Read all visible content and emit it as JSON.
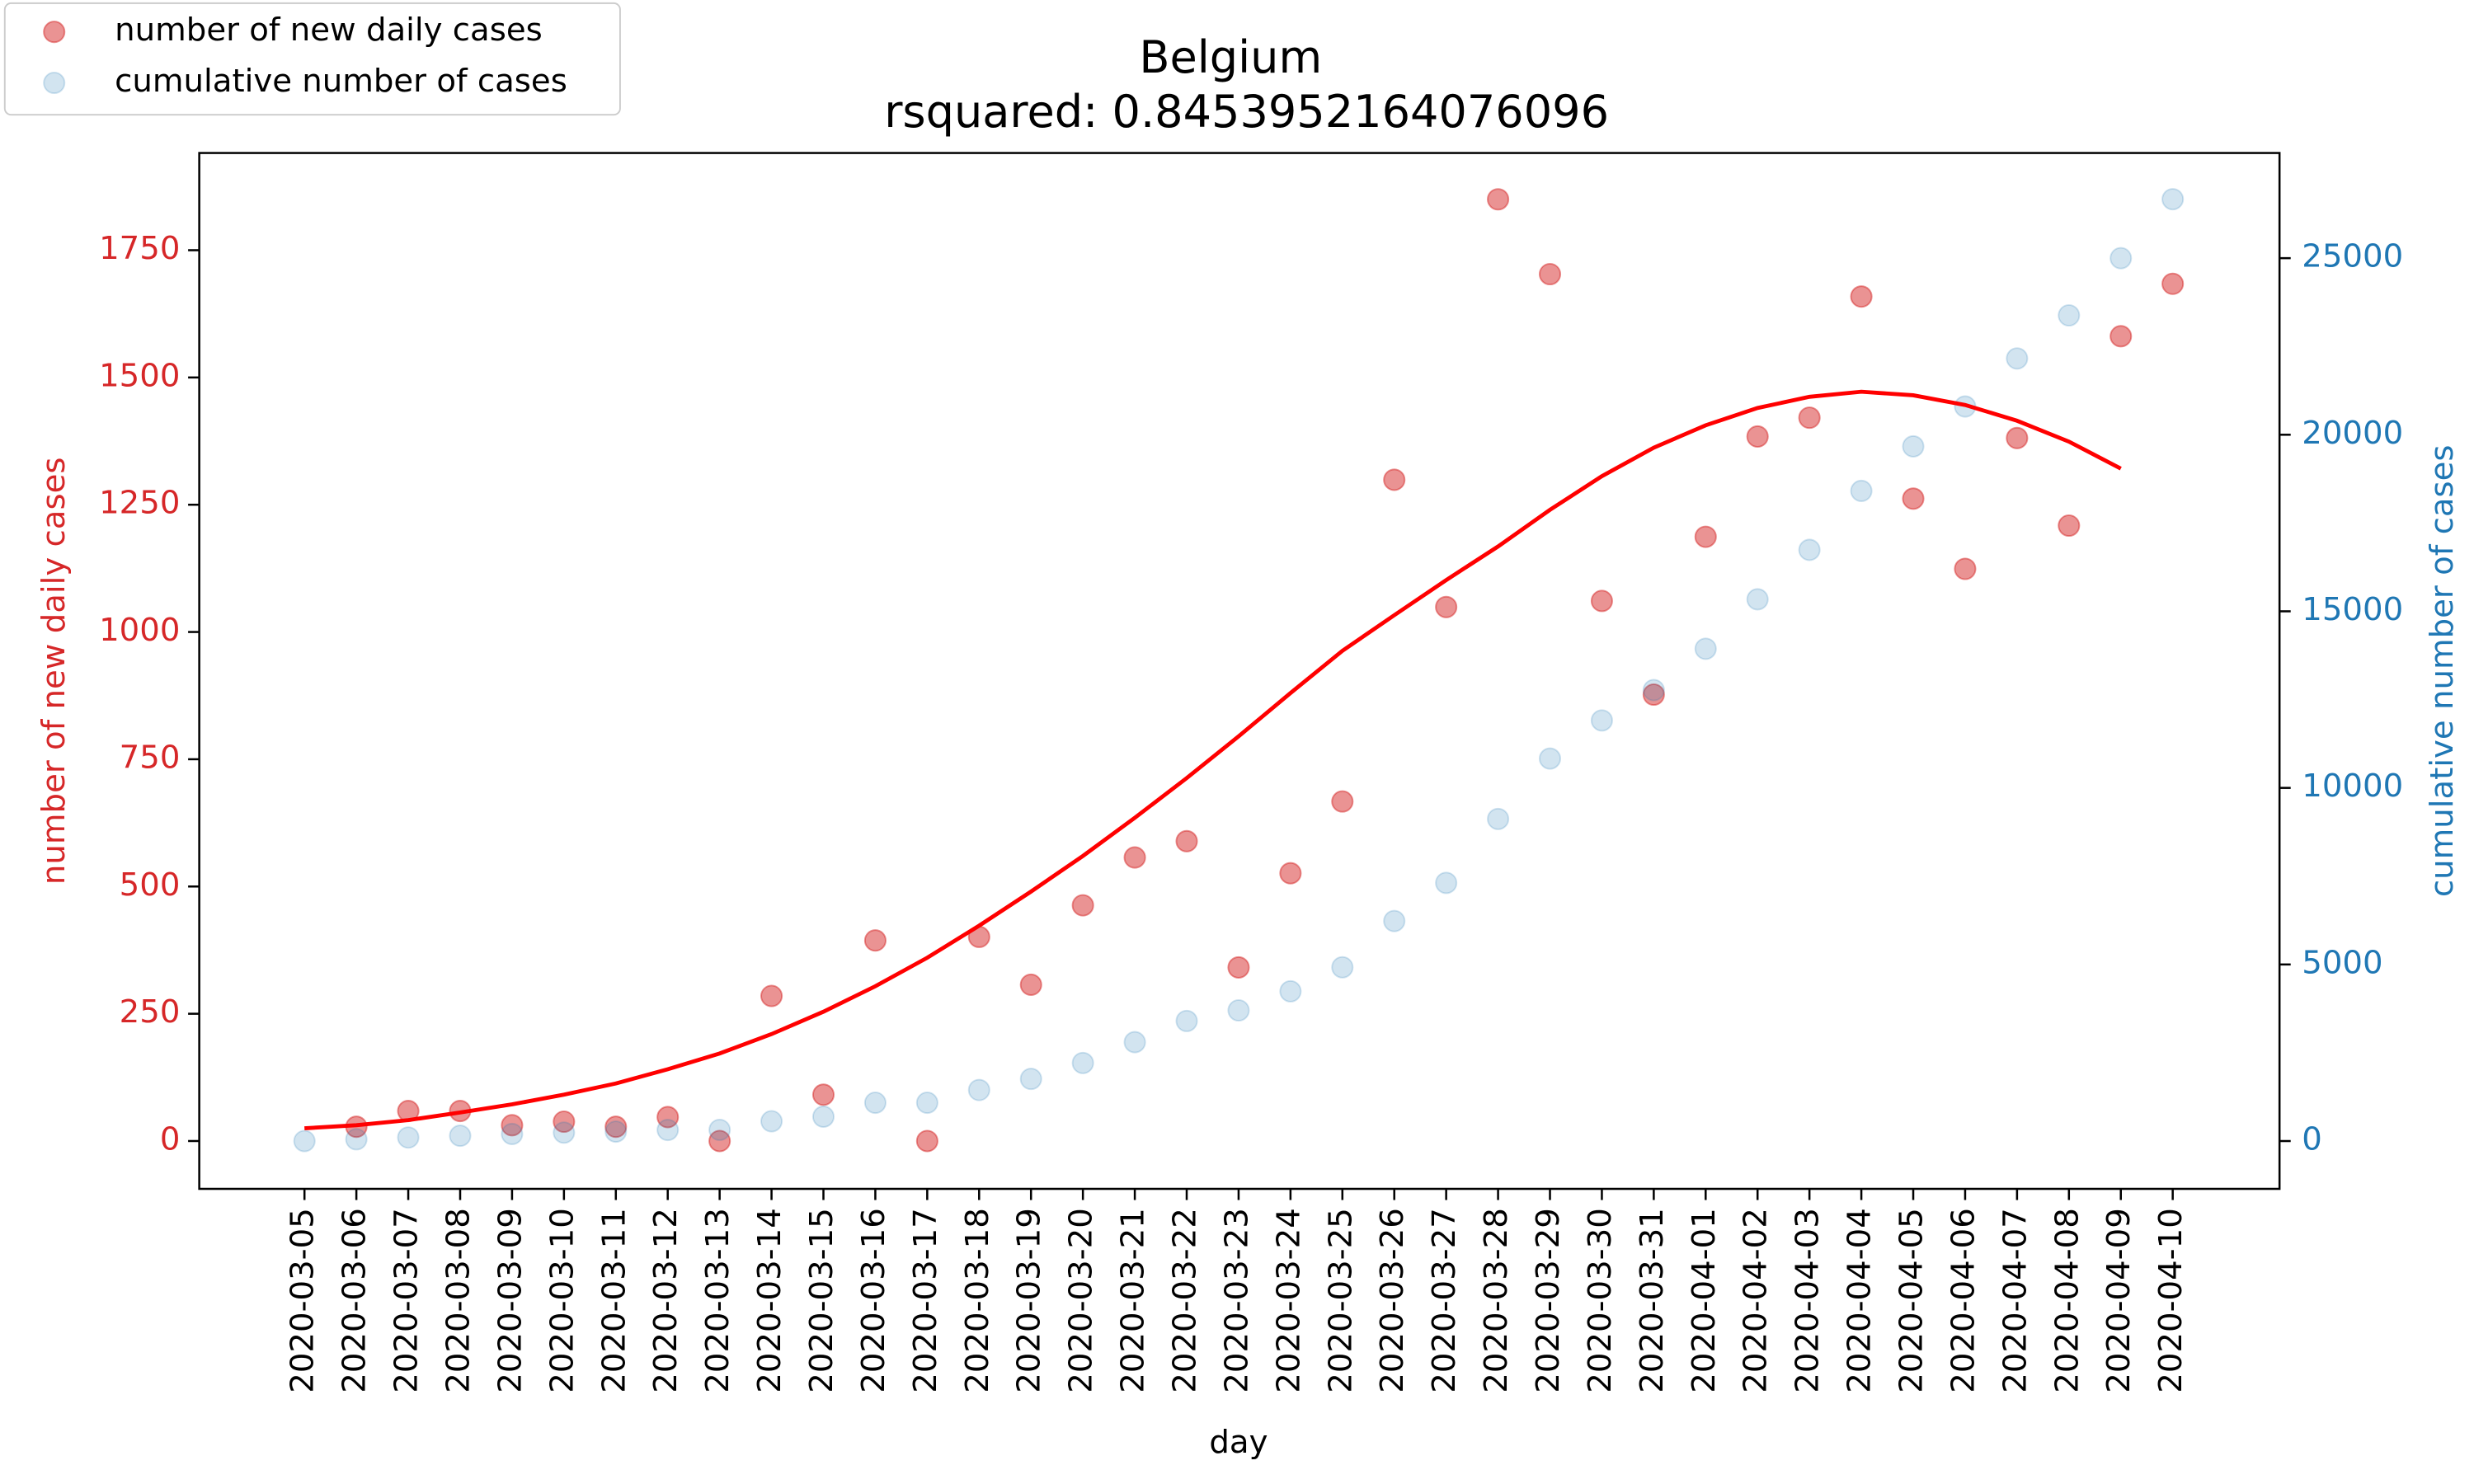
{
  "chart_data": {
    "type": "scatter",
    "title": "Belgium",
    "subtitle": "rsquared: 0.8453952164076096",
    "x_label": "day",
    "y_label": "number of new daily cases",
    "y2_label": "cumulative number of cases",
    "y_label_color": "#d62728",
    "y2_label_color": "#1f77b4",
    "legend": "upper left",
    "categories": [
      "2020-03-05",
      "2020-03-06",
      "2020-03-07",
      "2020-03-08",
      "2020-03-09",
      "2020-03-10",
      "2020-03-11",
      "2020-03-12",
      "2020-03-13",
      "2020-03-14",
      "2020-03-15",
      "2020-03-16",
      "2020-03-17",
      "2020-03-18",
      "2020-03-19",
      "2020-03-20",
      "2020-03-21",
      "2020-03-22",
      "2020-03-23",
      "2020-03-24",
      "2020-03-25",
      "2020-03-26",
      "2020-03-27",
      "2020-03-28",
      "2020-03-29",
      "2020-03-30",
      "2020-03-31",
      "2020-04-01",
      "2020-04-02",
      "2020-04-03",
      "2020-04-04",
      "2020-04-05",
      "2020-04-06",
      "2020-04-07",
      "2020-04-08",
      "2020-04-09",
      "2020-04-10"
    ],
    "series": [
      {
        "name": "number of new daily cases",
        "color": "#d62728",
        "opacity": 0.5,
        "style": "scatter",
        "values": [
          null,
          28,
          59,
          59,
          31,
          38,
          28,
          47,
          0,
          285,
          91,
          394,
          0,
          401,
          307,
          463,
          557,
          589,
          341,
          526,
          667,
          1299,
          1049,
          1850,
          1703,
          1061,
          877,
          1187,
          1384,
          1421,
          1659,
          1262,
          1124,
          1381,
          1209,
          1581,
          1684
        ]
      },
      {
        "name": "cumulative number of cases",
        "color": "#1f77b4",
        "opacity": 0.2,
        "style": "scatter",
        "axis": "y2",
        "values": [
          0,
          50,
          100,
          150,
          200,
          239,
          267,
          314,
          316,
          560,
          690,
          1085,
          1085,
          1445,
          1760,
          2210,
          2800,
          3400,
          3700,
          4240,
          4920,
          6230,
          7310,
          9120,
          10830,
          11910,
          12770,
          13940,
          15340,
          16740,
          18410,
          19670,
          20800,
          22160,
          23380,
          25000,
          26670
        ]
      },
      {
        "color": "#ff0000",
        "style": "line",
        "values": [
          25,
          31,
          41,
          56,
          72,
          91,
          113,
          141,
          172,
          210,
          254,
          304,
          360,
          423,
          490,
          560,
          635,
          713,
          795,
          880,
          963,
          1033,
          1102,
          1168,
          1240,
          1306,
          1362,
          1406,
          1440,
          1462,
          1472,
          1465,
          1446,
          1415,
          1374,
          1321,
          null
        ]
      }
    ],
    "ylim": [
      -94,
      1941
    ],
    "yticks": [
      0,
      250,
      500,
      750,
      1000,
      1250,
      1500,
      1750
    ],
    "y2lim": [
      -1354,
      27978
    ],
    "y2ticks": [
      0,
      5000,
      10000,
      15000,
      20000,
      25000
    ]
  }
}
